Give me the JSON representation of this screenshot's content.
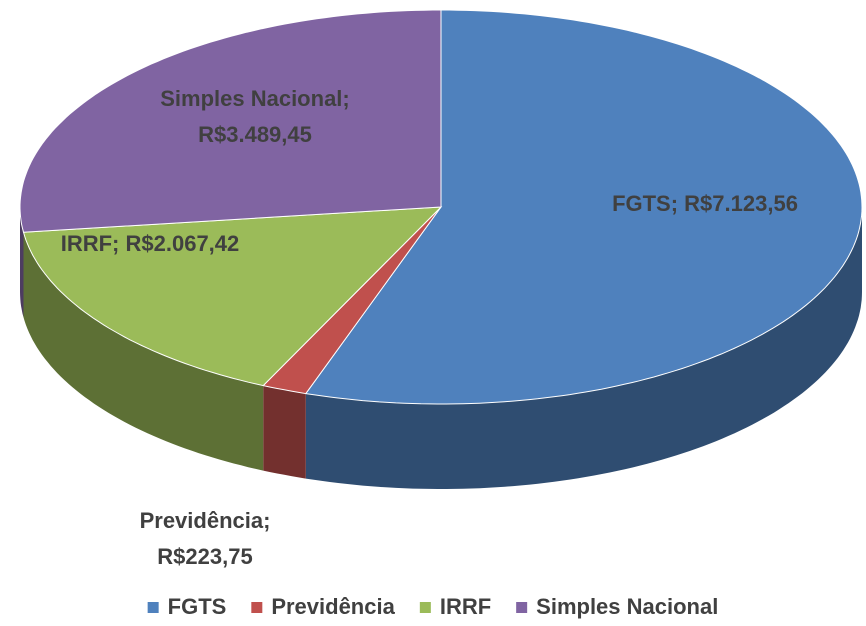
{
  "chart_data": {
    "type": "pie3d",
    "categories": [
      "FGTS",
      "Previdência",
      "IRRF",
      "Simples Nacional"
    ],
    "values": [
      7123.56,
      223.75,
      2067.42,
      3489.45
    ],
    "value_labels": [
      [
        "FGTS; R$7.123,56"
      ],
      [
        "Previdência;",
        "R$223,75"
      ],
      [
        "IRRF; R$2.067,42"
      ],
      [
        "Simples Nacional;",
        "R$3.489,45"
      ]
    ],
    "colors": [
      "#4f81bd",
      "#c0504d",
      "#9bbb59",
      "#8064a2"
    ],
    "legend": "bottom"
  }
}
